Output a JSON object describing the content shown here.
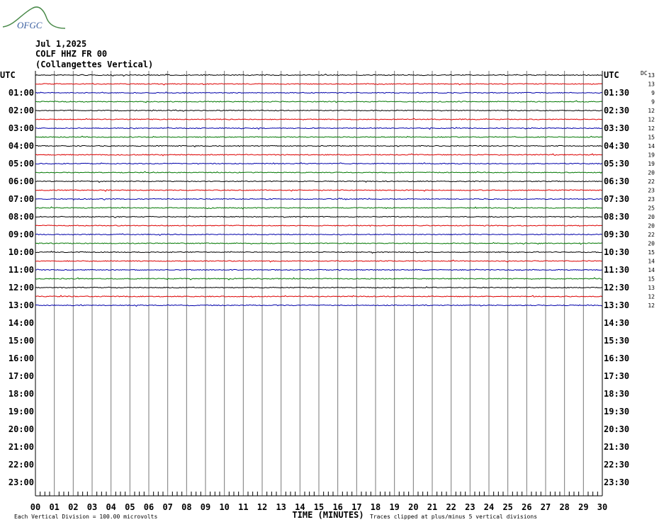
{
  "logo": {
    "text": "OFGC"
  },
  "header": {
    "lines": [
      "Jul 1,2025",
      "COLF HHZ FR 00",
      "(Collangettes Vertical)"
    ]
  },
  "left_labels": [
    "UTC",
    "01:00",
    "02:00",
    "03:00",
    "04:00",
    "05:00",
    "06:00",
    "07:00",
    "08:00",
    "09:00",
    "10:00",
    "11:00",
    "12:00",
    "13:00",
    "14:00",
    "15:00",
    "16:00",
    "17:00",
    "18:00",
    "19:00",
    "20:00",
    "21:00",
    "22:00",
    "23:00"
  ],
  "right_labels": [
    "UTC",
    "01:30",
    "02:30",
    "03:30",
    "04:30",
    "05:30",
    "06:30",
    "07:30",
    "08:30",
    "09:30",
    "10:30",
    "11:30",
    "12:30",
    "13:30",
    "14:30",
    "15:30",
    "16:30",
    "17:30",
    "18:30",
    "19:30",
    "20:30",
    "21:30",
    "22:30",
    "23:30"
  ],
  "dc": {
    "label": "DC",
    "values": [
      "13",
      "13",
      "9",
      "9",
      "12",
      "12",
      "12",
      "15",
      "14",
      "19",
      "19",
      "20",
      "22",
      "23",
      "23",
      "25",
      "20",
      "20",
      "22",
      "20",
      "15",
      "14",
      "14",
      "15",
      "13",
      "12",
      "12"
    ]
  },
  "x_axis": {
    "labels": [
      "00",
      "01",
      "02",
      "03",
      "04",
      "05",
      "06",
      "07",
      "08",
      "09",
      "10",
      "11",
      "12",
      "13",
      "14",
      "15",
      "16",
      "17",
      "18",
      "19",
      "20",
      "21",
      "22",
      "23",
      "24",
      "25",
      "26",
      "27",
      "28",
      "29",
      "30"
    ],
    "title": "TIME (MINUTES)"
  },
  "footer": {
    "left": "Each Vertical Division =  100.00 microvolts",
    "right": "Traces clipped at plus/minus 5 vertical divisions"
  }
}
